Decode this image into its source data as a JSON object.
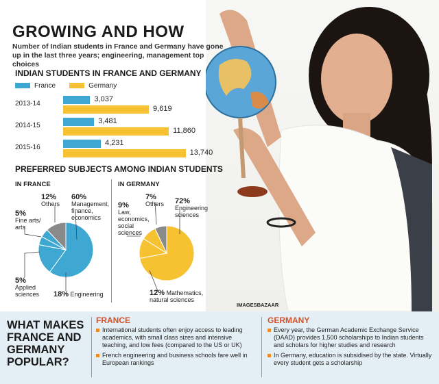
{
  "title": "GROWING AND HOW",
  "subtitle": "Number of Indian students in France and Germany have gone up in the last three years; engineering, management top choices",
  "bar_section_title": "INDIAN STUDENTS IN FRANCE AND GERMANY",
  "pie_section_title": "PREFERRED SUBJECTS AMONG INDIAN STUDENTS",
  "france_label": "IN FRANCE",
  "germany_label": "IN GERMANY",
  "credit": "IMAGESBAZAAR",
  "colors": {
    "france": "#3ea8d3",
    "germany": "#f7c232",
    "grey": "#8a8a8a",
    "bullet": "#f08a1c",
    "heading": "#d4522a"
  },
  "chart_data": [
    {
      "type": "bar",
      "orientation": "horizontal",
      "title": "INDIAN STUDENTS IN FRANCE AND GERMANY",
      "categories": [
        "2013-14",
        "2014-15",
        "2015-16"
      ],
      "series": [
        {
          "name": "France",
          "values": [
            3037,
            3481,
            4231
          ],
          "labels": [
            "3,037",
            "3,481",
            "4,231"
          ]
        },
        {
          "name": "Germany",
          "values": [
            9619,
            11860,
            13740
          ],
          "labels": [
            "9,619",
            "11,860",
            "13,740"
          ]
        }
      ],
      "legend_position": "top-left"
    },
    {
      "type": "pie",
      "title": "IN FRANCE",
      "slices": [
        {
          "label": "Management, finance, economics",
          "value": 60,
          "pct": "60%"
        },
        {
          "label": "Engineering",
          "value": 18,
          "pct": "18%"
        },
        {
          "label": "Applied sciences",
          "value": 5,
          "pct": "5%"
        },
        {
          "label": "Fine arts/ arts",
          "value": 5,
          "pct": "5%"
        },
        {
          "label": "Others",
          "value": 12,
          "pct": "12%"
        }
      ]
    },
    {
      "type": "pie",
      "title": "IN GERMANY",
      "slices": [
        {
          "label": "Engineering sciences",
          "value": 72,
          "pct": "72%"
        },
        {
          "label": "Mathematics, natural sciences",
          "value": 12,
          "pct": "12%"
        },
        {
          "label": "Law, economics, social sciences",
          "value": 9,
          "pct": "9%"
        },
        {
          "label": "Others",
          "value": 7,
          "pct": "7%"
        }
      ]
    }
  ],
  "bottom": {
    "question": "WHAT MAKES FRANCE AND GERMANY POPULAR?",
    "france": {
      "heading": "FRANCE",
      "points": [
        "International students often enjoy access to leading academics, with small class sizes and intensive teaching, and low fees (compared to the US or UK)",
        "French engineering and business schools fare well in European rankings"
      ]
    },
    "germany": {
      "heading": "GERMANY",
      "points": [
        "Every year, the German Academic Exchange Service (DAAD) provides 1,500 scholarships to Indian students and scholars for higher studies and research",
        "In Germany, education is subsidised by the state. Virtually every student gets a scholarship"
      ]
    }
  }
}
